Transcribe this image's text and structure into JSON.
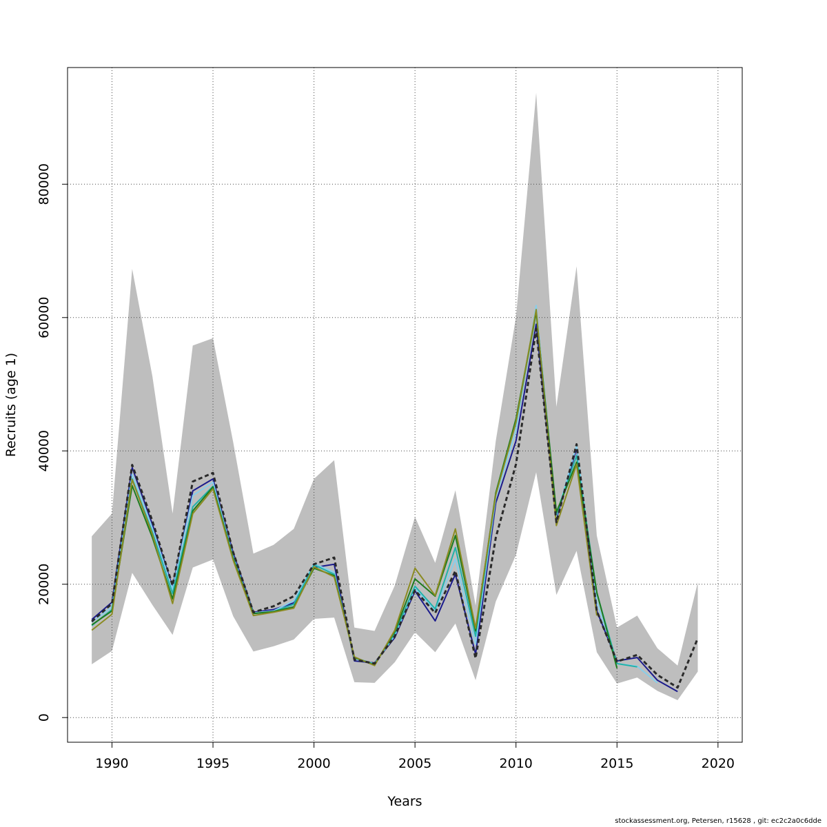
{
  "chart_data": {
    "type": "line",
    "xlabel": "Years",
    "ylabel": "Recruits (age 1)",
    "xlim": [
      1987.8,
      2021.2
    ],
    "ylim": [
      -3700,
      97500
    ],
    "xticks": [
      1990,
      1995,
      2000,
      2005,
      2010,
      2015,
      2020
    ],
    "xtick_labels": [
      "1990",
      "1995",
      "2000",
      "2005",
      "2010",
      "2015",
      "2020"
    ],
    "yticks": [
      0,
      20000,
      40000,
      60000,
      80000
    ],
    "ytick_labels": [
      "0",
      "20000",
      "40000",
      "60000",
      "80000"
    ],
    "grid": true,
    "band": {
      "x": [
        1989,
        1990,
        1991,
        1992,
        1993,
        1994,
        1995,
        1996,
        1997,
        1998,
        1999,
        2000,
        2001,
        2002,
        2003,
        2004,
        2005,
        2006,
        2007,
        2008,
        2009,
        2010,
        2011,
        2012,
        2013,
        2014,
        2015,
        2016,
        2017,
        2018,
        2019
      ],
      "lower": [
        8000,
        10000,
        21700,
        16900,
        12400,
        22500,
        23700,
        15200,
        9900,
        10700,
        11700,
        14800,
        15000,
        5300,
        5200,
        8300,
        12800,
        9800,
        14100,
        5600,
        17400,
        24400,
        36800,
        18400,
        25000,
        9800,
        5100,
        6000,
        4000,
        2600,
        6900
      ],
      "upper": [
        27200,
        30600,
        67300,
        51200,
        30600,
        55800,
        56900,
        41300,
        24600,
        25900,
        28300,
        35800,
        38600,
        13500,
        13000,
        19800,
        30100,
        23200,
        34100,
        16800,
        41500,
        60100,
        93700,
        46600,
        67700,
        27300,
        13500,
        15300,
        10400,
        7800,
        20300
      ],
      "color": "#bebebe"
    },
    "series": [
      {
        "color": "#1b1b8c",
        "width": 2,
        "dash": false,
        "x": [
          1989,
          1990,
          1991,
          1992,
          1993,
          1994,
          1995,
          1996,
          1997,
          1998,
          1999,
          2000,
          2001,
          2002,
          2003,
          2004,
          2005,
          2006,
          2007,
          2008,
          2009,
          2010,
          2011,
          2012,
          2013,
          2014,
          2015,
          2016,
          2017,
          2018
        ],
        "values": [
          14700,
          17300,
          37500,
          29000,
          19600,
          34000,
          35800,
          24700,
          15800,
          16200,
          17200,
          22500,
          23000,
          8500,
          8200,
          12000,
          19000,
          14500,
          21500,
          9500,
          32200,
          41500,
          59000,
          29800,
          40400,
          16000,
          8500,
          9000,
          5600,
          3900
        ]
      },
      {
        "color": "#87ceeb",
        "width": 2,
        "dash": false,
        "x": [
          1989,
          1990,
          1991,
          1992,
          1993,
          1994,
          1995,
          1996,
          1997,
          1998,
          1999,
          2000,
          2001,
          2002,
          2003,
          2004,
          2005,
          2006,
          2007,
          2008,
          2009,
          2010,
          2011,
          2012,
          2013,
          2014,
          2015,
          2016,
          2017
        ],
        "values": [
          14300,
          16600,
          36500,
          28400,
          19300,
          33300,
          35300,
          24200,
          15700,
          16000,
          17500,
          23100,
          21800,
          8800,
          8100,
          12300,
          19400,
          16000,
          23800,
          11000,
          33000,
          43000,
          61800,
          30200,
          40800,
          17400,
          8100,
          7700,
          5200
        ]
      },
      {
        "color": "#20b2aa",
        "width": 2,
        "dash": false,
        "x": [
          1989,
          1990,
          1991,
          1992,
          1993,
          1994,
          1995,
          1996,
          1997,
          1998,
          1999,
          2000,
          2001,
          2002,
          2003,
          2004,
          2005,
          2006,
          2007,
          2008,
          2009,
          2010,
          2011,
          2012,
          2013,
          2014,
          2015,
          2016
        ],
        "values": [
          13800,
          16200,
          35800,
          27800,
          18600,
          31600,
          34700,
          24000,
          15600,
          15900,
          17000,
          22900,
          21500,
          9000,
          8000,
          12600,
          19700,
          16300,
          25500,
          12200,
          33500,
          44200,
          60800,
          30500,
          39300,
          18700,
          8100,
          7600
        ]
      },
      {
        "color": "#1e7b1e",
        "width": 2,
        "dash": false,
        "x": [
          1989,
          1990,
          1991,
          1992,
          1993,
          1994,
          1995,
          1996,
          1997,
          1998,
          1999,
          2000,
          2001,
          2002,
          2003,
          2004,
          2005,
          2006,
          2007,
          2008,
          2009,
          2010,
          2011,
          2012,
          2013,
          2014,
          2015
        ],
        "values": [
          13900,
          16000,
          34800,
          27000,
          17800,
          31000,
          34600,
          23800,
          15600,
          15900,
          16600,
          22400,
          21300,
          9000,
          7900,
          12900,
          20800,
          18200,
          27300,
          13000,
          33700,
          44800,
          60800,
          30800,
          38300,
          18800,
          7400
        ]
      },
      {
        "color": "#8b8b22",
        "width": 2,
        "dash": false,
        "x": [
          1989,
          1990,
          1991,
          1992,
          1993,
          1994,
          1995,
          1996,
          1997,
          1998,
          1999,
          2000,
          2001,
          2002,
          2003,
          2004,
          2005,
          2006,
          2007,
          2008,
          2009,
          2010,
          2011,
          2012,
          2013,
          2014
        ],
        "values": [
          13100,
          15500,
          35700,
          27500,
          17100,
          30600,
          34300,
          23600,
          15300,
          15800,
          16400,
          22600,
          21100,
          9100,
          7800,
          13100,
          22400,
          18300,
          28300,
          13400,
          33400,
          44300,
          61200,
          28800,
          38000,
          15300
        ]
      },
      {
        "color": "#2a2a2a",
        "width": 3,
        "dash": true,
        "x": [
          1989,
          1990,
          1991,
          1992,
          1993,
          1994,
          1995,
          1996,
          1997,
          1998,
          1999,
          2000,
          2001,
          2002,
          2003,
          2004,
          2005,
          2006,
          2007,
          2008,
          2009,
          2010,
          2011,
          2012,
          2013,
          2014,
          2015,
          2016,
          2017,
          2018,
          2019
        ],
        "values": [
          14400,
          17100,
          37900,
          29500,
          19800,
          35400,
          36700,
          24800,
          15800,
          16700,
          18200,
          23000,
          24000,
          8700,
          8100,
          12200,
          19100,
          15700,
          22000,
          8900,
          27000,
          38000,
          58300,
          29300,
          41000,
          16000,
          8400,
          9400,
          6400,
          4500,
          11900
        ]
      }
    ]
  },
  "footnote": "stockassessment.org, Petersen, r15628 , git: ec2c2a0c6dde"
}
